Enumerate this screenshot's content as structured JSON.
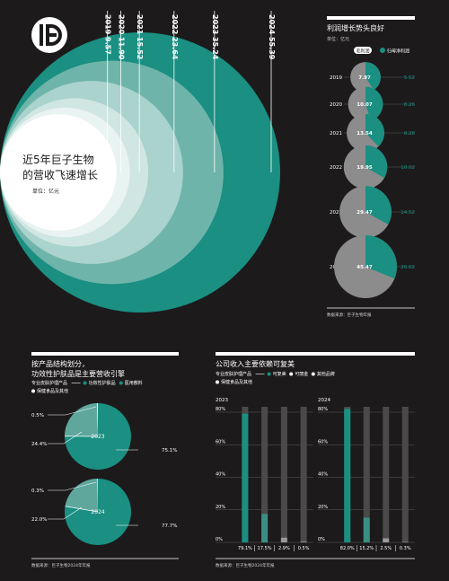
{
  "colors": {
    "background": "#1c1a1b",
    "teal": "#1a8f82",
    "grey": "#8c8c8c",
    "panel": "#ffffff",
    "track": "#4a4a4a"
  },
  "logo": {
    "icon": "ljyy-logo-icon"
  },
  "revenue": {
    "title_line1": "近5年巨子生物",
    "title_line2": "的营收飞速增长",
    "unit": "单位：亿元",
    "labels": [
      "2019 9.57",
      "2020 11.90",
      "2021 15.52",
      "2022 23.64",
      "2023 35.24",
      "2024 55.39"
    ]
  },
  "profit": {
    "title": "利润增长势头良好",
    "unit": "单位：亿元",
    "legend_gross": "毛利润",
    "legend_net": "归母净利润",
    "source": "数据来源：巨子生物年报"
  },
  "structure": {
    "title_line1": "按产品结构划分，",
    "title_line2": "功效性护肤品是主要营收引擎",
    "legend_line1": [
      "专业皮肤护理产品",
      "功效性护肤品",
      "医用敷料"
    ],
    "legend_line2": [
      "保健食品及其他"
    ],
    "source": "数据来源：巨子生物2024年年报"
  },
  "brands": {
    "title": "公司收入主要依赖可复美",
    "legend_line1": [
      "专业皮肤护理产品",
      "可复美",
      "可丽金",
      "其他品牌"
    ],
    "legend_line2": [
      "保健食品及其他"
    ],
    "source": "数据来源：巨子生物2024年年报"
  },
  "chart_data": [
    {
      "type": "area",
      "title": "近5年巨子生物的营收飞速增长",
      "unit": "亿元",
      "categories": [
        "2019",
        "2020",
        "2021",
        "2022",
        "2023",
        "2024"
      ],
      "values": [
        9.57,
        11.9,
        15.52,
        23.64,
        35.24,
        55.39
      ]
    },
    {
      "type": "pie",
      "title": "利润增长势头良好",
      "unit": "亿元",
      "categories": [
        "2019",
        "2020",
        "2021",
        "2022",
        "2023",
        "2024"
      ],
      "series": [
        {
          "name": "毛利润",
          "values": [
            7.97,
            10.07,
            13.54,
            19.95,
            29.47,
            45.47
          ]
        },
        {
          "name": "归母净利润",
          "values": [
            5.52,
            8.26,
            8.28,
            10.02,
            14.52,
            20.62
          ]
        }
      ]
    },
    {
      "type": "pie",
      "title": "按产品结构划分，功效性护肤品是主要营收引擎",
      "pies": [
        {
          "year": "2023",
          "slices": [
            {
              "name": "功效性护肤品",
              "value": 75.1
            },
            {
              "name": "医用敷料",
              "value": 24.4
            },
            {
              "name": "保健食品及其他",
              "value": 0.5
            }
          ]
        },
        {
          "year": "2024",
          "slices": [
            {
              "name": "功效性护肤品",
              "value": 77.7
            },
            {
              "name": "医用敷料",
              "value": 22.0
            },
            {
              "name": "保健食品及其他",
              "value": 0.3
            }
          ]
        }
      ]
    },
    {
      "type": "bar",
      "title": "公司收入主要依赖可复美",
      "ylim": [
        0,
        80
      ],
      "yticks": [
        "0%",
        "20%",
        "40%",
        "60%",
        "80%"
      ],
      "categories": [
        "可复美",
        "可丽金",
        "其他品牌",
        "保健食品及其他"
      ],
      "panels": [
        {
          "year": "2023",
          "values": [
            79.1,
            17.5,
            2.9,
            0.5
          ],
          "labels": [
            "79.1%",
            "17.5%",
            "2.9%",
            "0.5%"
          ]
        },
        {
          "year": "2024",
          "values": [
            82.0,
            15.2,
            2.5,
            0.3
          ],
          "labels": [
            "82.0%",
            "15.2%",
            "2.5%",
            "0.3%"
          ]
        }
      ]
    }
  ]
}
